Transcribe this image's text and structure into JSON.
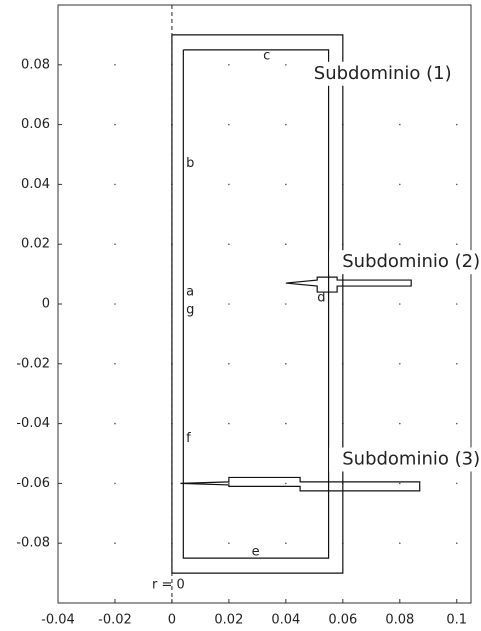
{
  "chart_data": {
    "type": "geometry",
    "xlim": [
      -0.04,
      0.105
    ],
    "ylim": [
      -0.1,
      0.1
    ],
    "xticks": [
      -0.04,
      -0.02,
      0,
      0.02,
      0.04,
      0.06,
      0.08,
      0.1
    ],
    "yticks": [
      -0.08,
      -0.06,
      -0.04,
      -0.02,
      0,
      0.02,
      0.04,
      0.06,
      0.08
    ],
    "grid": "dots",
    "symmetry_axis": 0,
    "shapes": [
      {
        "x": [
          0,
          0.06,
          0.06,
          0,
          0
        ],
        "y": [
          0.09,
          0.09,
          -0.09,
          -0.09,
          0.09
        ]
      },
      {
        "x": [
          0.004,
          0.055,
          0.055,
          0.004,
          0.004
        ],
        "y": [
          0.085,
          0.085,
          -0.085,
          -0.085,
          0.085
        ]
      },
      {
        "x": [
          0.04,
          0.051,
          0.051,
          0.058,
          0.058,
          0.084,
          0.084,
          0.058,
          0.058,
          0.051,
          0.051,
          0.04
        ],
        "y": [
          0.007,
          0.006,
          0.004,
          0.004,
          0.006,
          0.006,
          0.008,
          0.008,
          0.009,
          0.009,
          0.008,
          0.007
        ]
      },
      {
        "x": [
          0.003,
          0.02,
          0.02,
          0.045,
          0.045,
          0.087,
          0.087,
          0.045,
          0.045,
          0.02,
          0.02,
          0.003
        ],
        "y": [
          -0.06,
          -0.0605,
          -0.061,
          -0.061,
          -0.0625,
          -0.0625,
          -0.0595,
          -0.0595,
          -0.058,
          -0.058,
          -0.0595,
          -0.06
        ]
      }
    ],
    "annotations": [
      {
        "text": "Subdominio (1)",
        "x": 0.074,
        "y": 0.077,
        "size": "big"
      },
      {
        "text": "Subdominio (2)",
        "x": 0.084,
        "y": 0.014,
        "size": "big"
      },
      {
        "text": "Subdominio (3)",
        "x": 0.084,
        "y": -0.052,
        "size": "big"
      },
      {
        "text": "a",
        "x": 0.005,
        "y": 0.004,
        "size": "small"
      },
      {
        "text": "b",
        "x": 0.005,
        "y": 0.047,
        "size": "small"
      },
      {
        "text": "c",
        "x": 0.032,
        "y": 0.083,
        "size": "small"
      },
      {
        "text": "d",
        "x": 0.051,
        "y": 0.002,
        "size": "small"
      },
      {
        "text": "e",
        "x": 0.028,
        "y": -0.083,
        "size": "small"
      },
      {
        "text": "f",
        "x": 0.005,
        "y": -0.045,
        "size": "small"
      },
      {
        "text": "g",
        "x": 0.005,
        "y": -0.002,
        "size": "small"
      },
      {
        "text": "r = 0",
        "x": -0.007,
        "y": -0.094,
        "size": "small"
      }
    ]
  }
}
